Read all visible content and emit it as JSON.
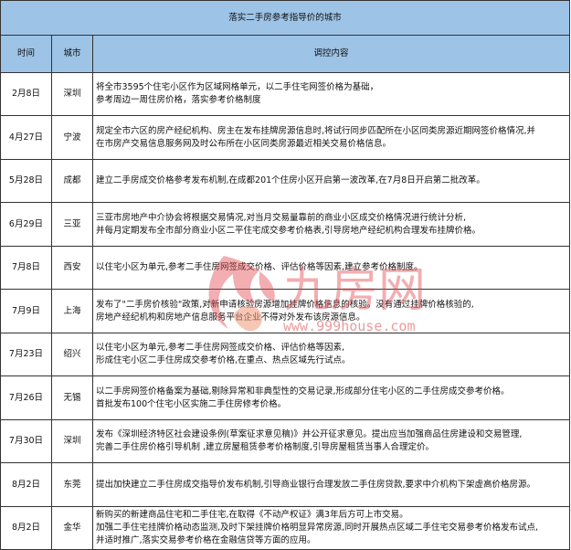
{
  "title": "落实二手房参考指导价的城市",
  "headers": {
    "date": "时间",
    "city": "城市",
    "content": "调控内容"
  },
  "rows": [
    {
      "date": "2月8日",
      "city": "深圳",
      "lines": [
        "将全市3595个住宅小区作为区域网格单元，以二手住宅网签价格为基础，",
        "参考周边一周住房价格，落实参考价格制度"
      ]
    },
    {
      "date": "4月27日",
      "city": "宁波",
      "lines": [
        "规定全市六区的房产经纪机构、房主在发布挂牌房源信息时,将试行同步匹配所在小区同类房源近期网签价格情况,并",
        "在市房产交易信息服务网及时公布所在小区同类房源最近相关交易价格信息。"
      ]
    },
    {
      "date": "5月28日",
      "city": "成都",
      "lines": [
        "建立二手房成交价格参考发布机制,在成都201个住房小区开启第一波改革,在7月8日开启第二批改革。"
      ]
    },
    {
      "date": "6月29日",
      "city": "三亚",
      "lines": [
        "三亚市房地产中介协会将根据交易情况,对当月交易量靠前的商业小区成交价格情况进行统计分析,",
        "并每月定期发布全市部分商业小区二平住宅成交参考价格表,引导房地产经纪机构合理发布挂牌价格。"
      ]
    },
    {
      "date": "7月8日",
      "city": "西安",
      "lines": [
        "以住宅小区为单元,参考二手住房网签成交价格、评估价格等因素,建立参考价格制度。"
      ]
    },
    {
      "date": "7月9日",
      "city": "上海",
      "lines": [
        "发布了\"二手房价核验\"政策,对新申请核验房源增加挂牌价格信息的核验。没有通过挂牌价格核验的,",
        "房地产经纪机构和房地产信息服务平台企业不得对外发布该房源信息。"
      ]
    },
    {
      "date": "7月23日",
      "city": "绍兴",
      "lines": [
        "以住宅小区为单元,参考二手住房网签成交价格、评估价格等因素,",
        "形成住宅小区二手住房成交参考价格,在重点、热点区域先行试点。"
      ]
    },
    {
      "date": "7月26日",
      "city": "无锡",
      "lines": [
        "以二手房网签价格备案为基础,剔除异常和非典型性的交易记录,形成部分住宅小区的二手住房成交参考价格。",
        "首批发布100个住宅小区实施二手住房修考价格。"
      ]
    },
    {
      "date": "7月30日",
      "city": "深圳",
      "lines": [
        "发布《深圳经济特区社会建设条例(草案征求意见稿)》并公开征求意见。提出应当加强商品住房建设和交易管理,",
        "完善二手住房价格引导机制 ,建立房屋租赁参考价格制度,引导房屋租赁当事人合理定价。"
      ]
    },
    {
      "date": "8月2日",
      "city": "东莞",
      "lines": [
        "提出加快建立二手住房成交指导价发布机制,引导商业银行合理发放二手住房贷款,要求中介机构下架虚高价格房源。"
      ]
    },
    {
      "date": "8月2日",
      "city": "金华",
      "lines": [
        "新购买的新建商品住宅和二手住宅,在取得《不动产权证》满3年后方可上市交易。",
        "加强二手住宅挂牌价格动态监测,及时下架挂牌价格明显异常房源,同时开展热点区域二手住宅交易参考价格发布试点,",
        "并适时推广,落实交易参考价格在金融信贷等方面的应用。"
      ]
    }
  ],
  "watermark": {
    "logo_text": "九房网",
    "url": "www.999house.com",
    "color": "#e0464b"
  },
  "colors": {
    "header_bg": "#9dc3e6",
    "border": "#333333"
  }
}
